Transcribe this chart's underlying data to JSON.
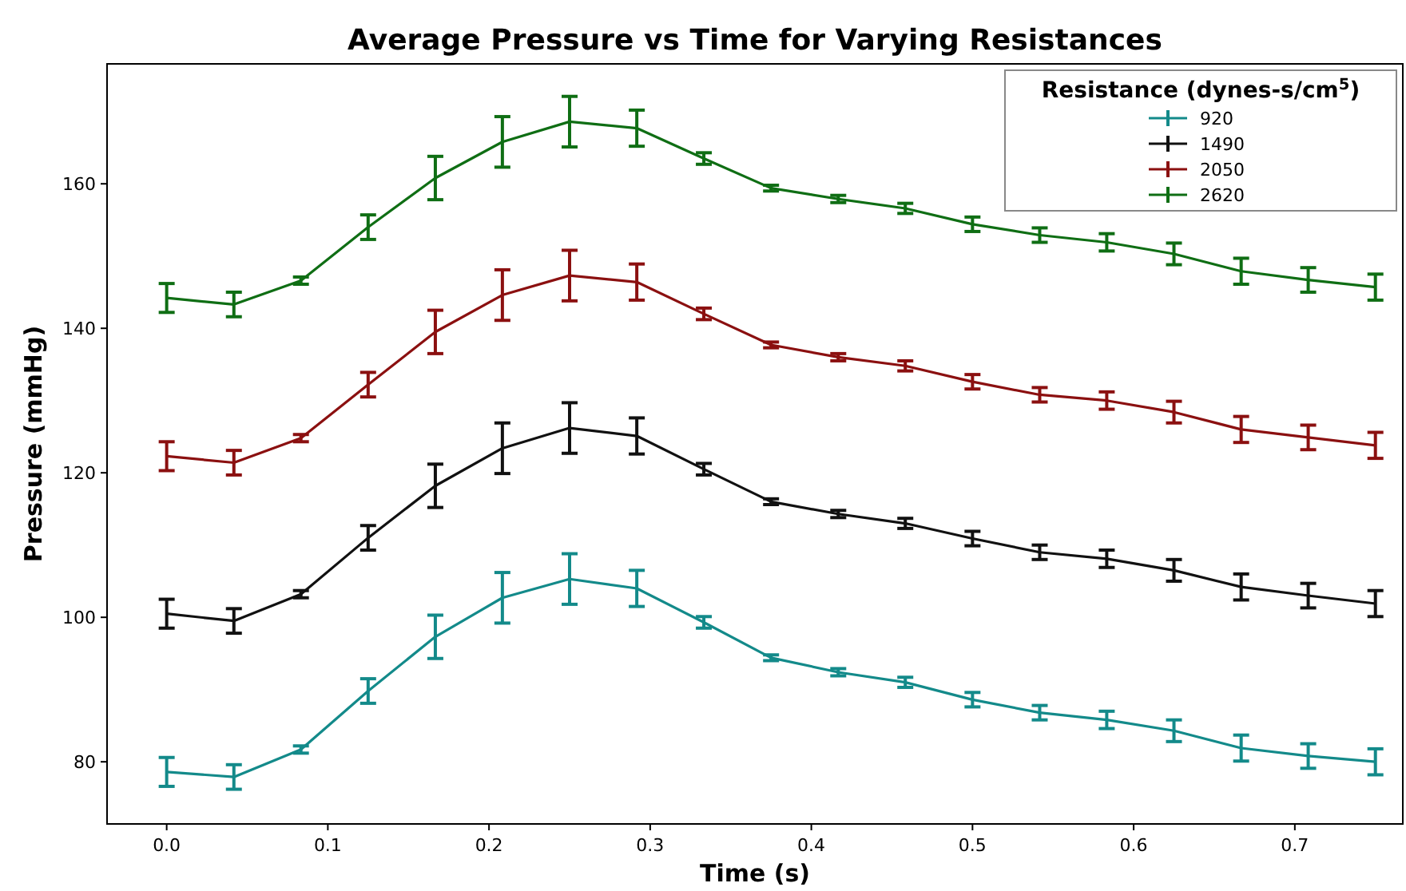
{
  "chart_data": {
    "type": "line",
    "title": "Average Pressure vs Time for Varying Resistances",
    "xlabel": "Time (s)",
    "ylabel": "Pressure (mmHg)",
    "legend_title": "Resistance (dynes-s/cm$^{5}$)",
    "legend": "top right",
    "grid": false,
    "marker": "none",
    "line_style": "solid",
    "x": [
      0,
      0.0417,
      0.0833,
      0.125,
      0.1667,
      0.2083,
      0.25,
      0.2917,
      0.3333,
      0.375,
      0.4167,
      0.4583,
      0.5,
      0.5417,
      0.5833,
      0.625,
      0.6667,
      0.7083,
      0.75
    ],
    "xlim": [
      -0.037,
      0.767
    ],
    "xticks": [
      {
        "value": 0,
        "label": "0.0"
      },
      0.1,
      0.2,
      0.3,
      0.4,
      0.5,
      0.6,
      0.7
    ],
    "ylim": [
      71.4,
      176.6
    ],
    "yticks": [
      80,
      100,
      120,
      140,
      160
    ],
    "series": [
      {
        "name": "920",
        "color": "#138a8a",
        "values": [
          78.6,
          77.9,
          81.7,
          89.8,
          97.3,
          102.7,
          105.3,
          104.0,
          99.3,
          94.4,
          92.4,
          91.0,
          88.6,
          86.8,
          85.8,
          84.3,
          81.9,
          80.8,
          80.0
        ],
        "errors": [
          2,
          1.7,
          0.5,
          1.7,
          3,
          3.5,
          3.5,
          2.5,
          0.8,
          0.4,
          0.5,
          0.7,
          1,
          1,
          1.2,
          1.5,
          1.8,
          1.7,
          1.8
        ]
      },
      {
        "name": "1490",
        "color": "#111111",
        "values": [
          100.5,
          99.5,
          103.2,
          111,
          118.2,
          123.4,
          126.2,
          125.1,
          120.5,
          116.0,
          114.3,
          113.0,
          110.9,
          109.0,
          108.1,
          106.5,
          104.2,
          103.0,
          101.9
        ],
        "errors": [
          2,
          1.7,
          0.5,
          1.7,
          3,
          3.5,
          3.5,
          2.5,
          0.8,
          0.4,
          0.5,
          0.7,
          1,
          1,
          1.2,
          1.5,
          1.8,
          1.7,
          1.8
        ]
      },
      {
        "name": "2050",
        "color": "#8b1010",
        "values": [
          122.3,
          121.4,
          124.8,
          132.2,
          139.5,
          144.6,
          147.3,
          146.4,
          142.0,
          137.7,
          136.0,
          134.8,
          132.6,
          130.8,
          130.0,
          128.4,
          126.0,
          124.9,
          123.8
        ],
        "errors": [
          2,
          1.7,
          0.5,
          1.7,
          3,
          3.5,
          3.5,
          2.5,
          0.8,
          0.4,
          0.5,
          0.7,
          1,
          1,
          1.2,
          1.5,
          1.8,
          1.7,
          1.8
        ]
      },
      {
        "name": "2620",
        "color": "#0f6e14",
        "values": [
          144.2,
          143.3,
          146.6,
          154,
          160.8,
          165.8,
          168.6,
          167.7,
          163.5,
          159.4,
          157.9,
          156.6,
          154.4,
          152.9,
          151.9,
          150.3,
          147.9,
          146.7,
          145.7
        ],
        "errors": [
          2,
          1.7,
          0.5,
          1.7,
          3,
          3.5,
          3.5,
          2.5,
          0.8,
          0.4,
          0.5,
          0.7,
          1,
          1,
          1.2,
          1.5,
          1.8,
          1.7,
          1.8
        ]
      }
    ]
  }
}
